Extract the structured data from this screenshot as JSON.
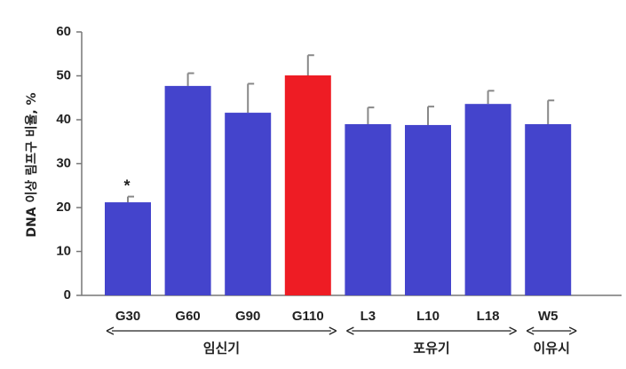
{
  "chart_data": {
    "type": "bar",
    "ylabel": "DNA 이상 림프구 비율, %",
    "ylim": [
      0,
      60
    ],
    "yticks": [
      0,
      10,
      20,
      30,
      40,
      50,
      60
    ],
    "categories": [
      "G30",
      "G60",
      "G90",
      "G110",
      "L3",
      "L10",
      "L18",
      "W5"
    ],
    "series": [
      {
        "values": [
          21.2,
          47.7,
          41.6,
          50.1,
          39.0,
          38.8,
          43.6,
          39.0
        ],
        "error": [
          1.3,
          2.9,
          6.6,
          4.6,
          3.8,
          4.2,
          3.0,
          5.4
        ],
        "colors": [
          "#4444cc",
          "#4444cc",
          "#4444cc",
          "#ee1c24",
          "#4444cc",
          "#4444cc",
          "#4444cc",
          "#4444cc"
        ]
      }
    ],
    "annotations": [
      {
        "category": "G30",
        "text": "*"
      }
    ],
    "groups": [
      {
        "label": "임신기",
        "from": "G30",
        "to": "G110"
      },
      {
        "label": "포유기",
        "from": "L3",
        "to": "L18"
      },
      {
        "label": "이유시",
        "from": "W5",
        "to": "W5"
      }
    ],
    "grid": false,
    "legend": "none"
  },
  "colors": {
    "bar": "#4444cc",
    "highlight": "#ee1c24",
    "axis": "#777777",
    "errorbar": "#888888"
  }
}
